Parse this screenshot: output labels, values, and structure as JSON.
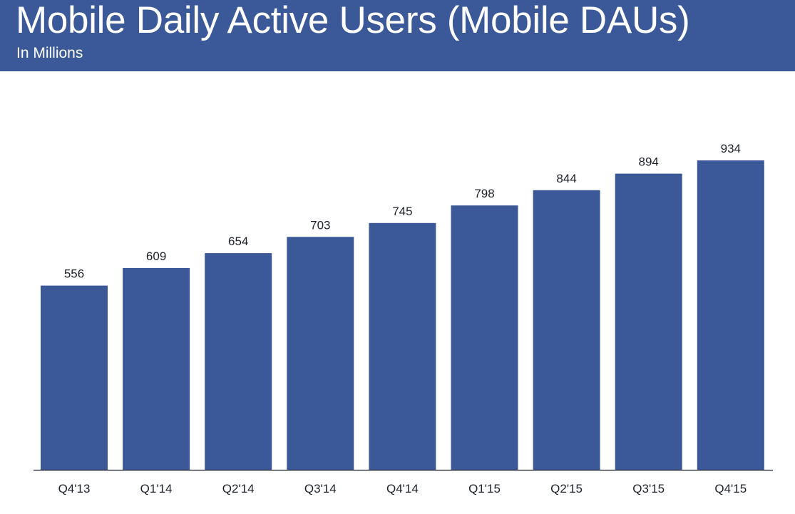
{
  "header": {
    "title": "Mobile Daily Active Users (Mobile DAUs)",
    "subtitle": "In Millions"
  },
  "colors": {
    "brand": "#3b5998",
    "bar": "#3b5998",
    "axis": "#1d2129",
    "text": "#1d2129"
  },
  "chart_data": {
    "type": "bar",
    "title": "Mobile Daily Active Users (Mobile DAUs)",
    "subtitle": "In Millions",
    "categories": [
      "Q4'13",
      "Q1'14",
      "Q2'14",
      "Q3'14",
      "Q4'14",
      "Q1'15",
      "Q2'15",
      "Q3'15",
      "Q4'15"
    ],
    "values": [
      556,
      609,
      654,
      703,
      745,
      798,
      844,
      894,
      934
    ],
    "data_labels": [
      "556",
      "609",
      "654",
      "703",
      "745",
      "798",
      "844",
      "894",
      "934"
    ],
    "xlabel": "",
    "ylabel": "",
    "ylim": [
      0,
      934
    ],
    "grid": false,
    "legend": "none"
  }
}
